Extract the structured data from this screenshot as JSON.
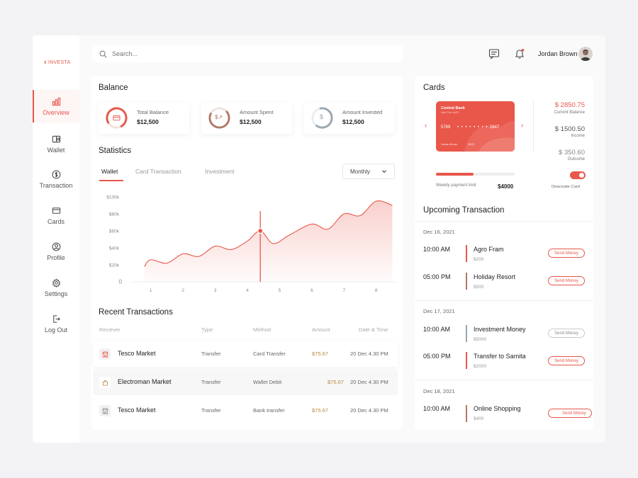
{
  "brand": {
    "logo_text": "INVESTA"
  },
  "sidebar": {
    "items": [
      {
        "label": "Overview"
      },
      {
        "label": "Wallet"
      },
      {
        "label": "Transaction"
      },
      {
        "label": "Cards"
      },
      {
        "label": "Profile"
      },
      {
        "label": "Settings"
      },
      {
        "label": "Log Out"
      }
    ]
  },
  "header": {
    "search_placeholder": "Search...",
    "user_name": "Jordan Brown",
    "icons": [
      "chat-icon",
      "bell-icon"
    ],
    "notification_dot_color": "#e8574a"
  },
  "balance": {
    "title": "Balance",
    "cards": [
      {
        "label": "Total Balance",
        "value": "$12,500",
        "icon": "card-icon",
        "ring_color": "#e8574a"
      },
      {
        "label": "Amount Spent",
        "value": "$12,500",
        "icon": "dollar-arrow-icon",
        "ring_color": "#b07a66"
      },
      {
        "label": "Amount Invested",
        "value": "$12,500",
        "icon": "dollar-icon",
        "ring_color": "#9aa7b0"
      }
    ]
  },
  "statistics": {
    "title": "Statistics",
    "tabs": [
      {
        "label": "Wallet"
      },
      {
        "label": "Card Transaction"
      },
      {
        "label": "Investment"
      }
    ],
    "period": "Monthly"
  },
  "chart_data": {
    "type": "area",
    "x": [
      0.8,
      1,
      1.5,
      2,
      2.5,
      3,
      3.5,
      4,
      4.4,
      4.8,
      5.3,
      6,
      6.5,
      7,
      7.5,
      8,
      8.5
    ],
    "values": [
      18,
      26,
      22,
      33,
      30,
      42,
      38,
      48,
      60,
      45,
      55,
      68,
      62,
      80,
      78,
      95,
      90
    ],
    "xticks": [
      "1",
      "2",
      "3",
      "4",
      "5",
      "6",
      "7",
      "8"
    ],
    "yticks": [
      "0",
      "$20k",
      "$40k",
      "$60k",
      "$80k",
      "$100k"
    ],
    "ylim": [
      0,
      100
    ],
    "highlight_x": 4.4,
    "color": "#e8574a"
  },
  "recent": {
    "title": "Recent Transactions",
    "headers": [
      "Reciever",
      "Type",
      "Method",
      "Amount",
      "Date & Time"
    ],
    "rows": [
      {
        "name": "Tesco Market",
        "type": "Transfer",
        "method": "Card Transfer",
        "amount": "$75.67",
        "date": "20 Dec 4.30 PM",
        "icon": "store-icon"
      },
      {
        "name": "Electroman Market",
        "type": "Transfer",
        "method": "Wallet Debit",
        "amount": "$75.67",
        "date": "20 Dec 4.30 PM",
        "icon": "bag-icon"
      },
      {
        "name": "Tesco Market",
        "type": "Transfer",
        "method": "Bank transfer",
        "amount": "$75.67",
        "date": "20 Dec 4.30 PM",
        "icon": "store-icon"
      }
    ]
  },
  "cards": {
    "title": "Cards",
    "card": {
      "bank": "Central Bank",
      "subtitle": "Valid Thru 06/22",
      "num1": "5789",
      "num2": "• • • •   • • • •",
      "num3": "2847",
      "holder": "Jordan Brown",
      "expiry": "06/22"
    },
    "stats": [
      {
        "value": "$ 2850.75",
        "label": "Current Balance",
        "color": "#e8574a"
      },
      {
        "value": "$ 1500.50",
        "label": "Income",
        "color": "#555555"
      },
      {
        "value": "$ 350.60",
        "label": "Outcome",
        "color": "#888888"
      }
    ],
    "limit_label": "Weekly payment limit",
    "limit_value": "$4000",
    "limit_progress": 0.48,
    "deactivate_label": "Deacivate Card"
  },
  "upcoming": {
    "title": "Upcoming Transaction",
    "send_label": "Send Money",
    "groups": [
      {
        "date": "Dec 16, 2021",
        "items": [
          {
            "time": "10:00 AM",
            "name": "Agro Fram",
            "amount": "$200",
            "color": "#e8574a"
          },
          {
            "time": "05:00 PM",
            "name": "Holiday Resort",
            "amount": "$500",
            "color": "#b07a66"
          }
        ]
      },
      {
        "date": "Dec 17, 2021",
        "items": [
          {
            "time": "10:00 AM",
            "name": "Investment Money",
            "amount": "$5000",
            "color": "#9aa7b0"
          },
          {
            "time": "05:00 PM",
            "name": "Transfer to Samita",
            "amount": "$2000",
            "color": "#e8574a"
          }
        ]
      },
      {
        "date": "Dec 18, 2021",
        "items": [
          {
            "time": "10:00 AM",
            "name": "Online Shopping",
            "amount": "$400",
            "color": "#b07a66"
          }
        ]
      }
    ]
  }
}
